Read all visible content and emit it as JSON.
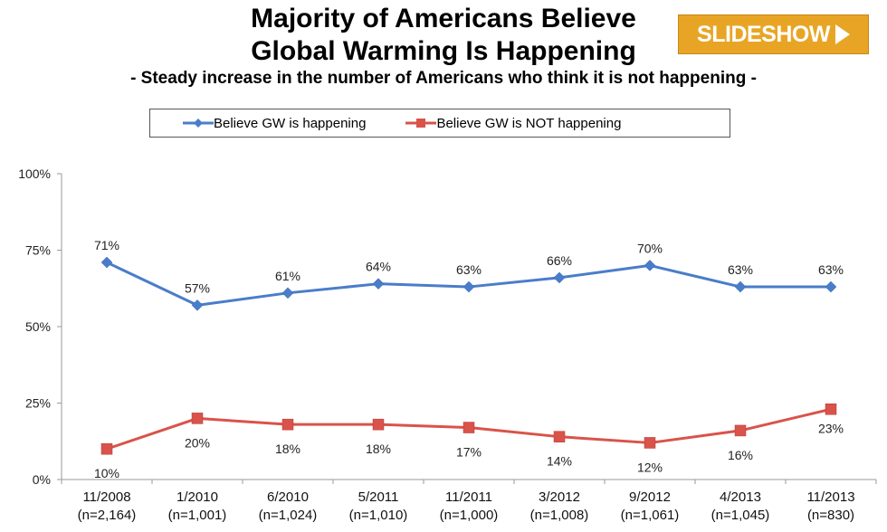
{
  "header": {
    "title_line1": "Majority of Americans Believe",
    "title_line2": "Global Warming Is Happening",
    "subtitle": "- Steady increase in the number of Americans who think it is not happening -",
    "slideshow_label": "SLIDESHOW"
  },
  "colors": {
    "series1": "#4a7dc9",
    "series2": "#d9534a",
    "slideshow_bg": "#e8a525"
  },
  "chart_data": {
    "type": "line",
    "title": "Majority of Americans Believe Global Warming Is Happening",
    "subtitle": "- Steady increase in the number of Americans who think it is not happening -",
    "categories": [
      "11/2008",
      "1/2010",
      "6/2010",
      "5/2011",
      "11/2011",
      "3/2012",
      "9/2012",
      "4/2013",
      "11/2013"
    ],
    "sample_sizes": [
      "(n=2,164)",
      "(n=1,001)",
      "(n=1,024)",
      "(n=1,010)",
      "(n=1,000)",
      "(n=1,008)",
      "(n=1,061)",
      "(n=1,045)",
      "(n=830)"
    ],
    "y_ticks": [
      "0%",
      "25%",
      "50%",
      "75%",
      "100%"
    ],
    "ylim": [
      0,
      100
    ],
    "grid": false,
    "legend_position": "top",
    "series": [
      {
        "name": "Believe GW is happening",
        "marker": "diamond",
        "values": [
          71,
          57,
          61,
          64,
          63,
          66,
          70,
          63,
          63
        ],
        "labels": [
          "71%",
          "57%",
          "61%",
          "64%",
          "63%",
          "66%",
          "70%",
          "63%",
          "63%"
        ]
      },
      {
        "name": "Believe GW is NOT happening",
        "marker": "square",
        "values": [
          10,
          20,
          18,
          18,
          17,
          14,
          12,
          16,
          23
        ],
        "labels": [
          "10%",
          "20%",
          "18%",
          "18%",
          "17%",
          "14%",
          "12%",
          "16%",
          "23%"
        ]
      }
    ]
  }
}
